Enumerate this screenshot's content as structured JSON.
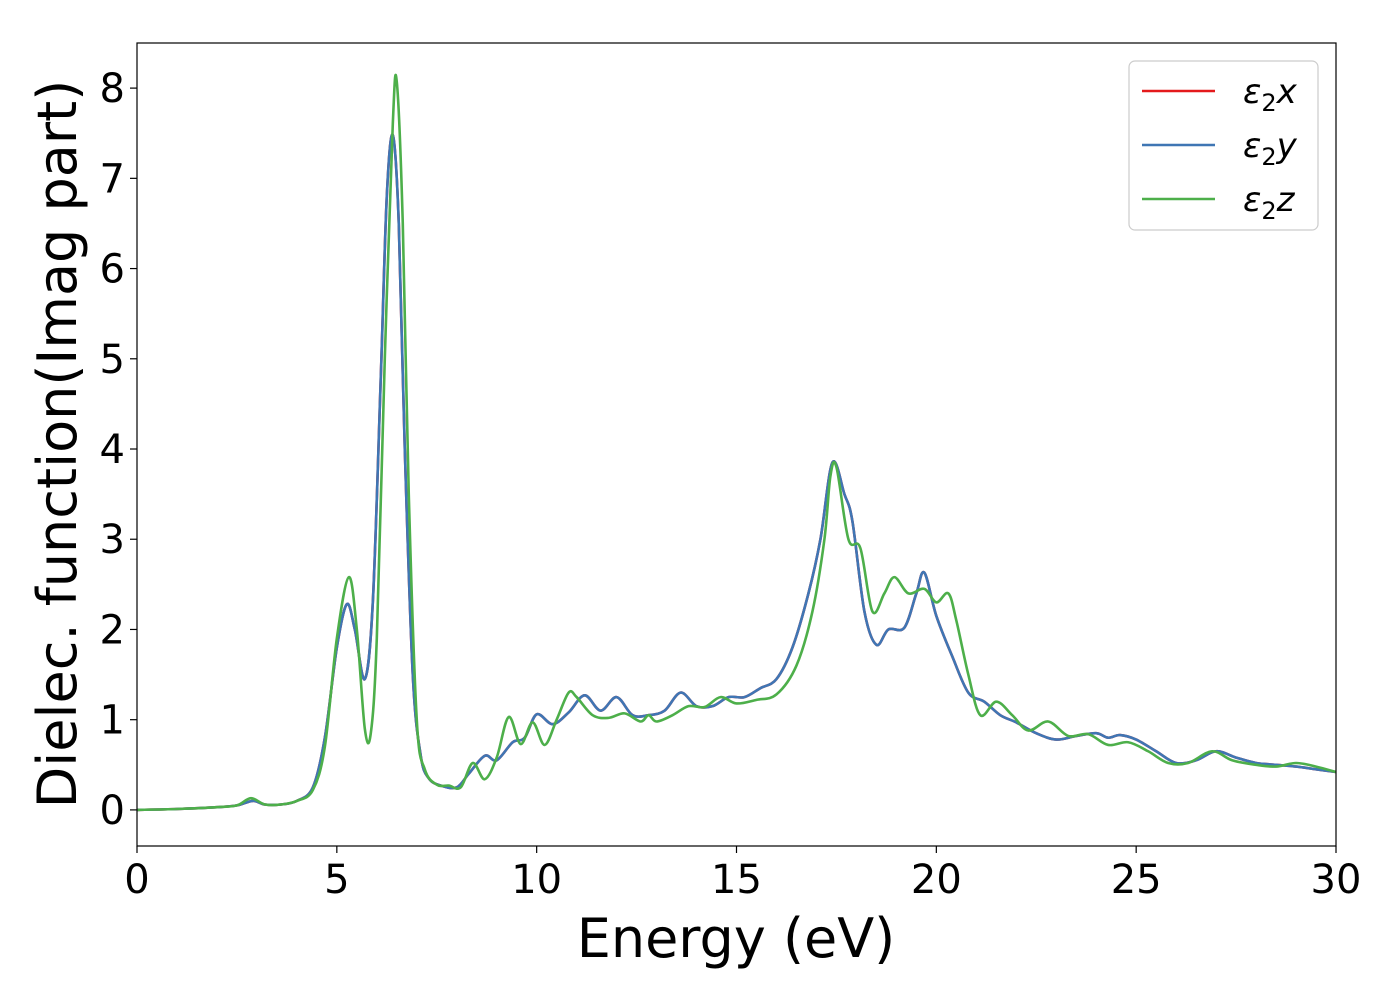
{
  "chart_data": {
    "type": "line",
    "title": "",
    "xlabel": "Energy (eV)",
    "ylabel": "Dielec. function(Imag part)",
    "xlim": [
      0,
      30
    ],
    "ylim": [
      -0.4,
      8.5
    ],
    "xticks": [
      0,
      5,
      10,
      15,
      20,
      25,
      30
    ],
    "yticks": [
      0,
      1,
      2,
      3,
      4,
      5,
      6,
      7,
      8
    ],
    "grid": false,
    "legend_position": "top-right",
    "series": [
      {
        "name": "ε₂x",
        "legend_base": "ε",
        "legend_sub": "2",
        "legend_var": "x",
        "color": "#e41a1c",
        "x": [
          0,
          1,
          2,
          2.5,
          2.9,
          3.2,
          3.6,
          4.0,
          4.4,
          4.7,
          5.0,
          5.25,
          5.45,
          5.7,
          5.9,
          6.1,
          6.25,
          6.4,
          6.55,
          6.7,
          6.9,
          7.1,
          7.3,
          7.6,
          8.0,
          8.3,
          8.7,
          9.0,
          9.4,
          9.7,
          10.0,
          10.4,
          10.8,
          11.2,
          11.6,
          12.0,
          12.4,
          12.8,
          13.2,
          13.6,
          14.0,
          14.4,
          14.8,
          15.2,
          15.6,
          16.0,
          16.4,
          16.8,
          17.1,
          17.4,
          17.7,
          17.9,
          18.2,
          18.5,
          18.8,
          19.2,
          19.5,
          19.7,
          20.0,
          20.4,
          20.8,
          21.2,
          21.6,
          22.0,
          22.5,
          23.0,
          23.5,
          24.0,
          24.3,
          24.6,
          25.0,
          25.5,
          26.0,
          26.5,
          27.0,
          27.5,
          28.0,
          28.5,
          29.0,
          29.5,
          30
        ],
        "y": [
          0.0,
          0.01,
          0.03,
          0.05,
          0.1,
          0.06,
          0.06,
          0.1,
          0.25,
          0.8,
          1.8,
          2.28,
          2.0,
          1.45,
          2.3,
          4.8,
          6.8,
          7.48,
          6.5,
          4.0,
          1.5,
          0.6,
          0.35,
          0.27,
          0.25,
          0.4,
          0.6,
          0.55,
          0.75,
          0.8,
          1.06,
          0.95,
          1.08,
          1.27,
          1.1,
          1.25,
          1.05,
          1.05,
          1.1,
          1.3,
          1.15,
          1.15,
          1.25,
          1.25,
          1.35,
          1.45,
          1.8,
          2.4,
          3.0,
          3.85,
          3.5,
          3.2,
          2.2,
          1.83,
          2.0,
          2.02,
          2.4,
          2.63,
          2.15,
          1.7,
          1.3,
          1.2,
          1.05,
          0.97,
          0.85,
          0.78,
          0.82,
          0.85,
          0.8,
          0.83,
          0.78,
          0.65,
          0.52,
          0.55,
          0.65,
          0.58,
          0.52,
          0.5,
          0.48,
          0.45,
          0.42
        ]
      },
      {
        "name": "ε₂y",
        "legend_base": "ε",
        "legend_sub": "2",
        "legend_var": "y",
        "color": "#3f76b4",
        "x": [
          0,
          1,
          2,
          2.5,
          2.9,
          3.2,
          3.6,
          4.0,
          4.4,
          4.7,
          5.0,
          5.25,
          5.45,
          5.7,
          5.9,
          6.1,
          6.25,
          6.4,
          6.55,
          6.7,
          6.9,
          7.1,
          7.3,
          7.6,
          8.0,
          8.3,
          8.7,
          9.0,
          9.4,
          9.7,
          10.0,
          10.4,
          10.8,
          11.2,
          11.6,
          12.0,
          12.4,
          12.8,
          13.2,
          13.6,
          14.0,
          14.4,
          14.8,
          15.2,
          15.6,
          16.0,
          16.4,
          16.8,
          17.1,
          17.4,
          17.7,
          17.9,
          18.2,
          18.5,
          18.8,
          19.2,
          19.5,
          19.7,
          20.0,
          20.4,
          20.8,
          21.2,
          21.6,
          22.0,
          22.5,
          23.0,
          23.5,
          24.0,
          24.3,
          24.6,
          25.0,
          25.5,
          26.0,
          26.5,
          27.0,
          27.5,
          28.0,
          28.5,
          29.0,
          29.5,
          30
        ],
        "y": [
          0.0,
          0.01,
          0.03,
          0.05,
          0.1,
          0.06,
          0.06,
          0.1,
          0.25,
          0.8,
          1.8,
          2.28,
          2.0,
          1.45,
          2.3,
          4.8,
          6.8,
          7.48,
          6.5,
          4.0,
          1.5,
          0.6,
          0.35,
          0.27,
          0.25,
          0.4,
          0.6,
          0.55,
          0.75,
          0.8,
          1.06,
          0.95,
          1.08,
          1.27,
          1.1,
          1.25,
          1.05,
          1.05,
          1.1,
          1.3,
          1.15,
          1.15,
          1.25,
          1.25,
          1.35,
          1.45,
          1.8,
          2.4,
          3.0,
          3.85,
          3.5,
          3.2,
          2.2,
          1.83,
          2.0,
          2.02,
          2.4,
          2.63,
          2.15,
          1.7,
          1.3,
          1.2,
          1.05,
          0.97,
          0.85,
          0.78,
          0.82,
          0.85,
          0.8,
          0.83,
          0.78,
          0.65,
          0.52,
          0.55,
          0.65,
          0.58,
          0.52,
          0.5,
          0.48,
          0.45,
          0.42
        ]
      },
      {
        "name": "ε₂z",
        "legend_base": "ε",
        "legend_sub": "2",
        "legend_var": "z",
        "color": "#4daf4a",
        "x": [
          0,
          1,
          2,
          2.5,
          2.85,
          3.2,
          3.6,
          4.0,
          4.4,
          4.7,
          5.0,
          5.3,
          5.5,
          5.7,
          5.85,
          6.0,
          6.2,
          6.4,
          6.5,
          6.65,
          6.8,
          7.0,
          7.2,
          7.5,
          7.8,
          8.1,
          8.4,
          8.7,
          9.0,
          9.3,
          9.6,
          9.9,
          10.2,
          10.5,
          10.8,
          11.0,
          11.4,
          11.8,
          12.2,
          12.6,
          12.8,
          13.0,
          13.4,
          13.8,
          14.2,
          14.6,
          15.0,
          15.5,
          16.0,
          16.5,
          16.9,
          17.2,
          17.35,
          17.5,
          17.8,
          18.1,
          18.4,
          18.7,
          18.95,
          19.3,
          19.7,
          20.0,
          20.3,
          20.5,
          20.8,
          21.1,
          21.5,
          21.9,
          22.3,
          22.8,
          23.3,
          23.8,
          24.3,
          24.8,
          25.3,
          25.8,
          26.3,
          26.9,
          27.4,
          28.0,
          28.5,
          29.0,
          29.5,
          30
        ],
        "y": [
          0.0,
          0.01,
          0.03,
          0.05,
          0.13,
          0.06,
          0.06,
          0.1,
          0.22,
          0.7,
          1.9,
          2.58,
          2.0,
          0.9,
          0.85,
          1.9,
          5.0,
          7.6,
          8.07,
          6.5,
          3.5,
          1.0,
          0.45,
          0.28,
          0.27,
          0.25,
          0.52,
          0.34,
          0.58,
          1.03,
          0.73,
          0.97,
          0.72,
          1.0,
          1.3,
          1.25,
          1.05,
          1.02,
          1.07,
          0.98,
          1.05,
          0.98,
          1.05,
          1.15,
          1.14,
          1.25,
          1.18,
          1.22,
          1.28,
          1.6,
          2.2,
          3.0,
          3.7,
          3.8,
          3.0,
          2.9,
          2.2,
          2.4,
          2.58,
          2.4,
          2.45,
          2.3,
          2.4,
          2.1,
          1.5,
          1.05,
          1.2,
          1.05,
          0.88,
          0.98,
          0.82,
          0.84,
          0.72,
          0.75,
          0.65,
          0.52,
          0.52,
          0.65,
          0.55,
          0.5,
          0.48,
          0.52,
          0.48,
          0.42
        ]
      }
    ]
  }
}
